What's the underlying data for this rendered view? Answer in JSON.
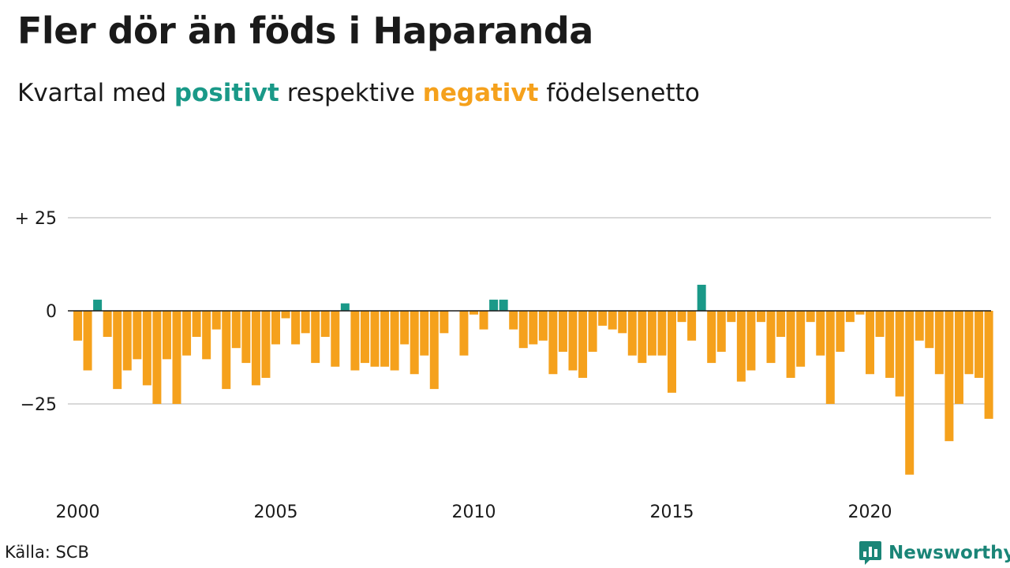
{
  "title": "Fler dör än föds i Haparanda",
  "subtitle": {
    "prefix": "Kvartal med ",
    "positive_word": "positivt",
    "middle": " respektive ",
    "negative_word": "negativt",
    "suffix": " födelsenetto"
  },
  "source": "Källa: SCB",
  "brand": {
    "name": "Newsworthy",
    "icon": "chart-speech-bubble-icon"
  },
  "colors": {
    "positive": "#1a9988",
    "negative": "#f5a11c",
    "grid": "#d9d9d9",
    "brand": "#1a8577"
  },
  "chart_data": {
    "type": "bar",
    "ylim": [
      -45,
      35
    ],
    "y_ticks": [
      {
        "value": 25,
        "label": "+ 25"
      },
      {
        "value": 0,
        "label": "0"
      },
      {
        "value": -25,
        "label": "−25"
      }
    ],
    "x_ticks": [
      {
        "year": 2000,
        "label": "2000"
      },
      {
        "year": 2005,
        "label": "2005"
      },
      {
        "year": 2010,
        "label": "2010"
      },
      {
        "year": 2015,
        "label": "2015"
      },
      {
        "year": 2020,
        "label": "2020"
      }
    ],
    "start_year": 2000,
    "grid": true,
    "values": [
      -8,
      -16,
      3,
      -7,
      -21,
      -16,
      -13,
      -20,
      -25,
      -13,
      -25,
      -12,
      -7,
      -13,
      -5,
      -21,
      -10,
      -14,
      -20,
      -18,
      -9,
      -2,
      -9,
      -6,
      -14,
      -7,
      -15,
      2,
      -16,
      -14,
      -15,
      -15,
      -16,
      -9,
      -17,
      -12,
      -21,
      -6,
      0,
      -12,
      -1,
      -5,
      3,
      3,
      -5,
      -10,
      -9,
      -8,
      -17,
      -11,
      -16,
      -18,
      -11,
      -4,
      -5,
      -6,
      -12,
      -14,
      -12,
      -12,
      -22,
      -3,
      -8,
      7,
      -14,
      -11,
      -3,
      -19,
      -16,
      -3,
      -14,
      -7,
      -18,
      -15,
      -3,
      -12,
      -25,
      -11,
      -3,
      -1,
      -17,
      -7,
      -18,
      -23,
      -44,
      -8,
      -10,
      -17,
      -35,
      -25,
      -17,
      -18,
      -29
    ]
  }
}
